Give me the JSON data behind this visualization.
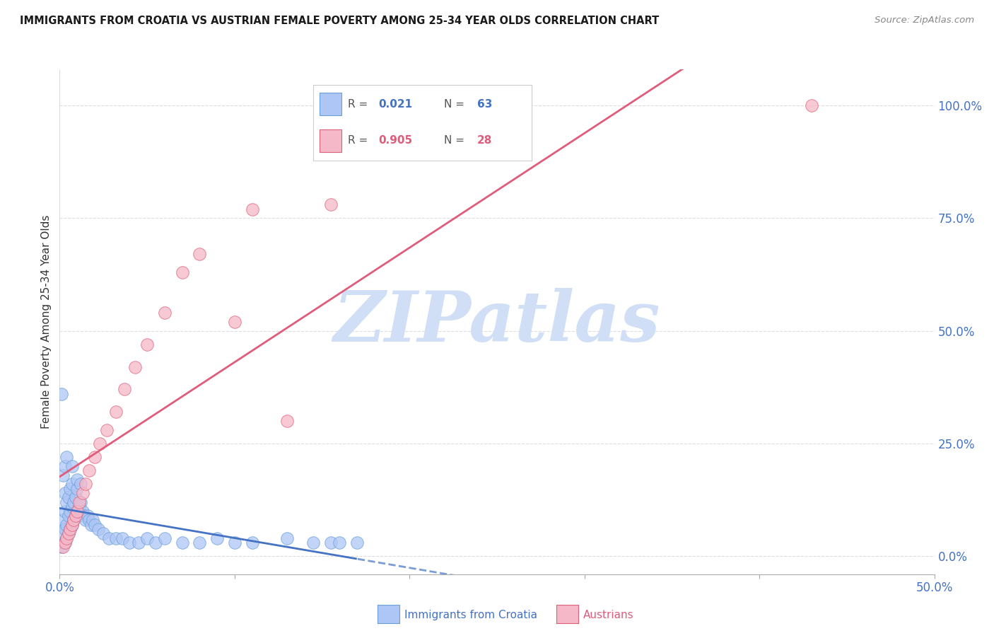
{
  "title": "IMMIGRANTS FROM CROATIA VS AUSTRIAN FEMALE POVERTY AMONG 25-34 YEAR OLDS CORRELATION CHART",
  "source": "Source: ZipAtlas.com",
  "ylabel": "Female Poverty Among 25-34 Year Olds",
  "xlim": [
    0.0,
    0.5
  ],
  "ylim": [
    -0.04,
    1.08
  ],
  "croatia_R": 0.021,
  "croatia_N": 63,
  "austrians_R": 0.905,
  "austrians_N": 28,
  "croatia_color": "#aec6f5",
  "croatia_edge_color": "#6a9fd8",
  "austrians_color": "#f5b8c8",
  "austrians_edge_color": "#e0607a",
  "croatia_line_color": "#4472c4",
  "austrians_line_color": "#e05c7a",
  "watermark_text": "ZIPatlas",
  "watermark_color": "#d0dff5",
  "background_color": "#ffffff",
  "title_color": "#1a1a1a",
  "source_color": "#888888",
  "axis_label_color": "#333333",
  "tick_color": "#4472c4",
  "grid_color": "#dddddd",
  "legend_border_color": "#cccccc",
  "croatia_x": [
    0.001,
    0.002,
    0.002,
    0.002,
    0.003,
    0.003,
    0.003,
    0.003,
    0.004,
    0.004,
    0.004,
    0.005,
    0.005,
    0.005,
    0.006,
    0.006,
    0.006,
    0.007,
    0.007,
    0.007,
    0.008,
    0.008,
    0.009,
    0.009,
    0.01,
    0.01,
    0.011,
    0.012,
    0.013,
    0.014,
    0.015,
    0.016,
    0.017,
    0.018,
    0.019,
    0.02,
    0.022,
    0.025,
    0.028,
    0.032,
    0.036,
    0.04,
    0.045,
    0.05,
    0.055,
    0.06,
    0.07,
    0.08,
    0.09,
    0.1,
    0.11,
    0.13,
    0.145,
    0.155,
    0.16,
    0.17,
    0.002,
    0.003,
    0.004,
    0.007,
    0.01,
    0.012,
    0.001
  ],
  "croatia_y": [
    0.02,
    0.03,
    0.05,
    0.08,
    0.03,
    0.06,
    0.1,
    0.14,
    0.04,
    0.07,
    0.12,
    0.05,
    0.09,
    0.13,
    0.06,
    0.1,
    0.15,
    0.07,
    0.11,
    0.16,
    0.08,
    0.12,
    0.09,
    0.13,
    0.1,
    0.15,
    0.11,
    0.12,
    0.1,
    0.09,
    0.08,
    0.09,
    0.08,
    0.07,
    0.08,
    0.07,
    0.06,
    0.05,
    0.04,
    0.04,
    0.04,
    0.03,
    0.03,
    0.04,
    0.03,
    0.04,
    0.03,
    0.03,
    0.04,
    0.03,
    0.03,
    0.04,
    0.03,
    0.03,
    0.03,
    0.03,
    0.18,
    0.2,
    0.22,
    0.2,
    0.17,
    0.16,
    0.36
  ],
  "austrians_x": [
    0.002,
    0.003,
    0.004,
    0.005,
    0.006,
    0.007,
    0.008,
    0.009,
    0.01,
    0.011,
    0.013,
    0.015,
    0.017,
    0.02,
    0.023,
    0.027,
    0.032,
    0.037,
    0.043,
    0.05,
    0.06,
    0.07,
    0.08,
    0.1,
    0.11,
    0.13,
    0.155,
    0.43
  ],
  "austrians_y": [
    0.02,
    0.03,
    0.04,
    0.05,
    0.06,
    0.07,
    0.08,
    0.09,
    0.1,
    0.12,
    0.14,
    0.16,
    0.19,
    0.22,
    0.25,
    0.28,
    0.32,
    0.37,
    0.42,
    0.47,
    0.54,
    0.63,
    0.67,
    0.52,
    0.77,
    0.3,
    0.78,
    1.0
  ]
}
